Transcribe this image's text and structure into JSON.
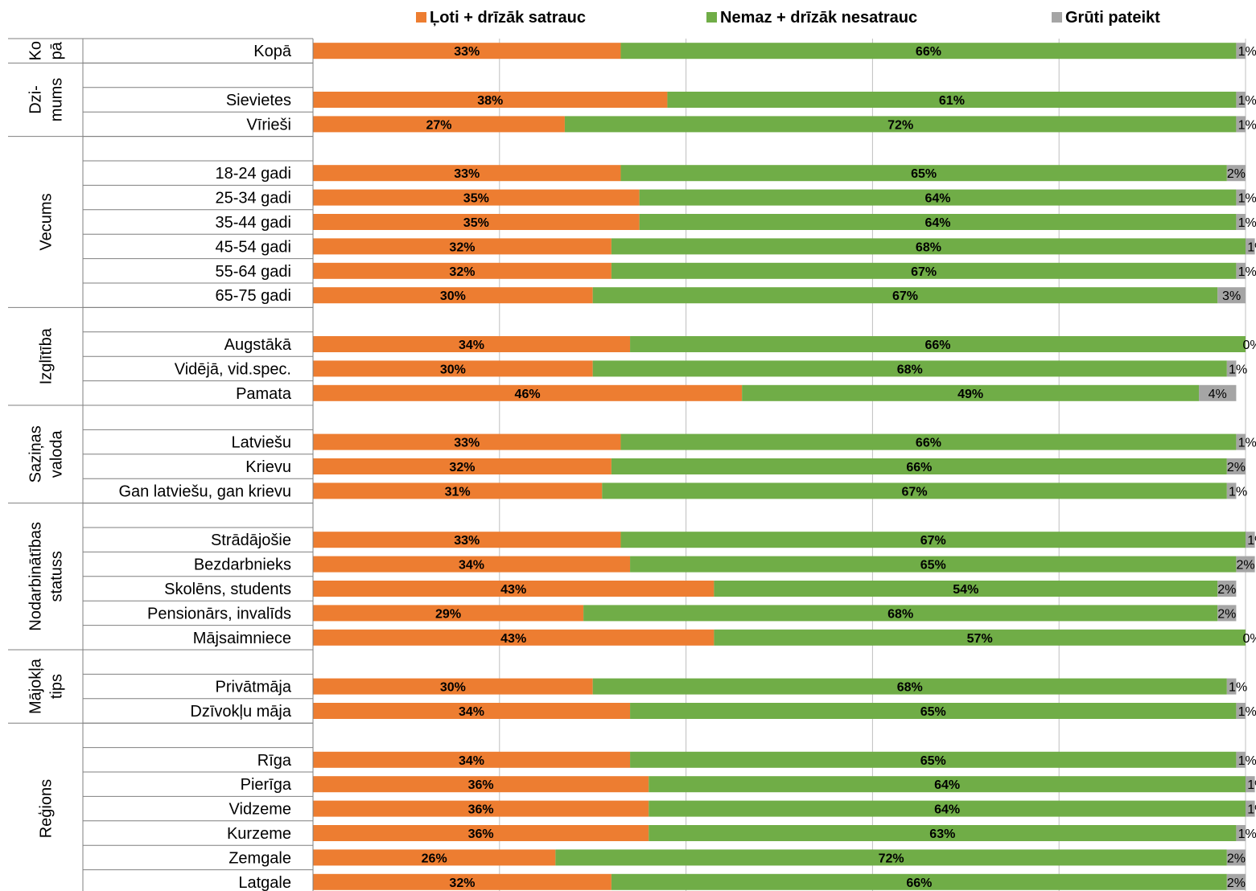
{
  "chart_data": {
    "type": "bar",
    "stacked": true,
    "orientation": "horizontal",
    "xlim": [
      0,
      100
    ],
    "grid": true,
    "legend_position": "top",
    "colors": {
      "series1": "#ED7D31",
      "series2": "#70AD47",
      "series3": "#A5A5A5"
    },
    "legend": [
      "Ļoti + drīzāk satrauc",
      "Nemaz + drīzāk nesatrauc",
      "Grūti pateikt"
    ],
    "groups": [
      {
        "label": [
          "Ko",
          "pā"
        ],
        "rows": [
          {
            "label": "Kopā",
            "values": [
              33,
              66,
              1
            ]
          }
        ]
      },
      {
        "label": [
          "Dzi-",
          "mums"
        ],
        "rows": [
          {
            "label": "Sievietes",
            "values": [
              38,
              61,
              1
            ]
          },
          {
            "label": "Vīrieši",
            "values": [
              27,
              72,
              1
            ]
          }
        ]
      },
      {
        "label": [
          "Vecums"
        ],
        "rows": [
          {
            "label": "18-24 gadi",
            "values": [
              33,
              65,
              2
            ]
          },
          {
            "label": "25-34 gadi",
            "values": [
              35,
              64,
              1
            ]
          },
          {
            "label": "35-44 gadi",
            "values": [
              35,
              64,
              1
            ]
          },
          {
            "label": "45-54 gadi",
            "values": [
              32,
              68,
              1
            ]
          },
          {
            "label": "55-64 gadi",
            "values": [
              32,
              67,
              1
            ]
          },
          {
            "label": "65-75 gadi",
            "values": [
              30,
              67,
              3
            ]
          }
        ]
      },
      {
        "label": [
          "Izglītība"
        ],
        "rows": [
          {
            "label": "Augstākā",
            "values": [
              34,
              66,
              0
            ]
          },
          {
            "label": "Vidējā, vid.spec.",
            "values": [
              30,
              68,
              1
            ]
          },
          {
            "label": "Pamata",
            "values": [
              46,
              49,
              4
            ]
          }
        ]
      },
      {
        "label": [
          "Saziņas",
          "valoda"
        ],
        "rows": [
          {
            "label": "Latviešu",
            "values": [
              33,
              66,
              1
            ]
          },
          {
            "label": "Krievu",
            "values": [
              32,
              66,
              2
            ]
          },
          {
            "label": "Gan latviešu, gan krievu",
            "values": [
              31,
              67,
              1
            ]
          }
        ]
      },
      {
        "label": [
          "Nodarbinātības",
          "statuss"
        ],
        "rows": [
          {
            "label": "Strādājošie",
            "values": [
              33,
              67,
              1
            ]
          },
          {
            "label": "Bezdarbnieks",
            "values": [
              34,
              65,
              2
            ]
          },
          {
            "label": "Skolēns, students",
            "values": [
              43,
              54,
              2
            ]
          },
          {
            "label": "Pensionārs, invalīds",
            "values": [
              29,
              68,
              2
            ]
          },
          {
            "label": "Mājsaimniece",
            "values": [
              43,
              57,
              0
            ]
          }
        ]
      },
      {
        "label": [
          "Mājokļa",
          "tips"
        ],
        "rows": [
          {
            "label": "Privātmāja",
            "values": [
              30,
              68,
              1
            ]
          },
          {
            "label": "Dzīvokļu māja",
            "values": [
              34,
              65,
              1
            ]
          }
        ]
      },
      {
        "label": [
          "Reģions"
        ],
        "rows": [
          {
            "label": "Rīga",
            "values": [
              34,
              65,
              1
            ]
          },
          {
            "label": "Pierīga",
            "values": [
              36,
              64,
              1
            ]
          },
          {
            "label": "Vidzeme",
            "values": [
              36,
              64,
              1
            ]
          },
          {
            "label": "Kurzeme",
            "values": [
              36,
              63,
              1
            ]
          },
          {
            "label": "Zemgale",
            "values": [
              26,
              72,
              2
            ]
          },
          {
            "label": "Latgale",
            "values": [
              32,
              66,
              2
            ]
          }
        ]
      }
    ]
  }
}
